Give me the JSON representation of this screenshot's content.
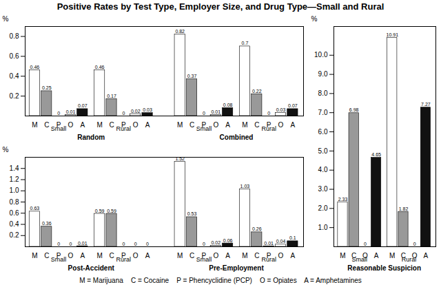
{
  "chart_data": [
    {
      "type": "bar",
      "title": "Positive Rates by Test Type, Employer Size, and Drug Type—Small and Rural",
      "caption": "M = Marijuana    C = Cocaine    P = Phencyclidine (PCP)    O = Opiates    A = Amphetamines",
      "categories": [
        "M",
        "C",
        "P",
        "O",
        "A"
      ],
      "colors": [
        "white",
        "#999999",
        "white",
        "white",
        "#111111"
      ],
      "groups": [
        {
          "label": "Random",
          "subgroups": [
            {
              "label": "Small",
              "values": [
                0.46,
                0.25,
                0.0,
                0.01,
                0.07
              ]
            },
            {
              "label": "Rural",
              "values": [
                0.46,
                0.17,
                0.0,
                0.02,
                0.03
              ]
            }
          ]
        },
        {
          "label": "Combined",
          "subgroups": [
            {
              "label": "Small",
              "values": [
                0.82,
                0.37,
                0.0,
                0.01,
                0.08
              ]
            },
            {
              "label": "Rural",
              "values": [
                0.7,
                0.22,
                0.0,
                0.03,
                0.07
              ]
            }
          ]
        }
      ],
      "ylabel": "%",
      "ylim": [
        0,
        0.9
      ],
      "yticks": [
        0.2,
        0.4,
        0.6,
        0.8
      ],
      "data_labels": true
    },
    {
      "type": "bar",
      "categories": [
        "M",
        "C",
        "P",
        "O",
        "A"
      ],
      "colors": [
        "white",
        "#999999",
        "white",
        "white",
        "#111111"
      ],
      "groups": [
        {
          "label": "Post-Accident",
          "subgroups": [
            {
              "label": "Small",
              "values": [
                0.63,
                0.36,
                0.0,
                0.0,
                0.01
              ]
            },
            {
              "label": "Rural",
              "values": [
                0.59,
                0.59,
                0.0,
                0.0,
                0.0
              ]
            }
          ]
        },
        {
          "label": "Pre-Employment",
          "subgroups": [
            {
              "label": "Small",
              "values": [
                1.52,
                0.53,
                0.0,
                0.02,
                0.06
              ]
            },
            {
              "label": "Rural",
              "values": [
                1.03,
                0.26,
                0.01,
                0.04,
                0.1
              ]
            }
          ]
        }
      ],
      "ylabel": "%",
      "ylim": [
        0,
        1.6
      ],
      "yticks": [
        0.2,
        0.4,
        0.6,
        0.8,
        {
          "value": 1.0,
          "label": "1.0"
        },
        1.2,
        1.4
      ],
      "data_labels": true
    },
    {
      "type": "bar",
      "categories": [
        "M",
        "C",
        "O",
        "A"
      ],
      "colors": [
        "white",
        "#999999",
        "white",
        "#111111"
      ],
      "groups": [
        {
          "label": "Reasonable Suspicion",
          "subgroups": [
            {
              "label": "Small",
              "values": [
                2.33,
                6.98,
                0.0,
                4.65
              ]
            },
            {
              "label": "Rural",
              "values": [
                10.91,
                1.82,
                0.0,
                7.27
              ]
            }
          ]
        }
      ],
      "ylabel": "%",
      "ylim": [
        0,
        11.5
      ],
      "yticks": [
        {
          "value": 1.0,
          "label": "1.0"
        },
        {
          "value": 2.0,
          "label": "2.0"
        },
        {
          "value": 3.0,
          "label": "3.0"
        },
        {
          "value": 4.0,
          "label": "4.0"
        },
        {
          "value": 5.0,
          "label": "5.0"
        },
        {
          "value": 6.0,
          "label": "6.0"
        },
        {
          "value": 7.0,
          "label": "7.0"
        },
        {
          "value": 8.0,
          "label": "8.0"
        },
        {
          "value": 9.0,
          "label": "9.0"
        },
        {
          "value": 10.0,
          "label": "10.0"
        }
      ],
      "data_labels": true
    }
  ]
}
